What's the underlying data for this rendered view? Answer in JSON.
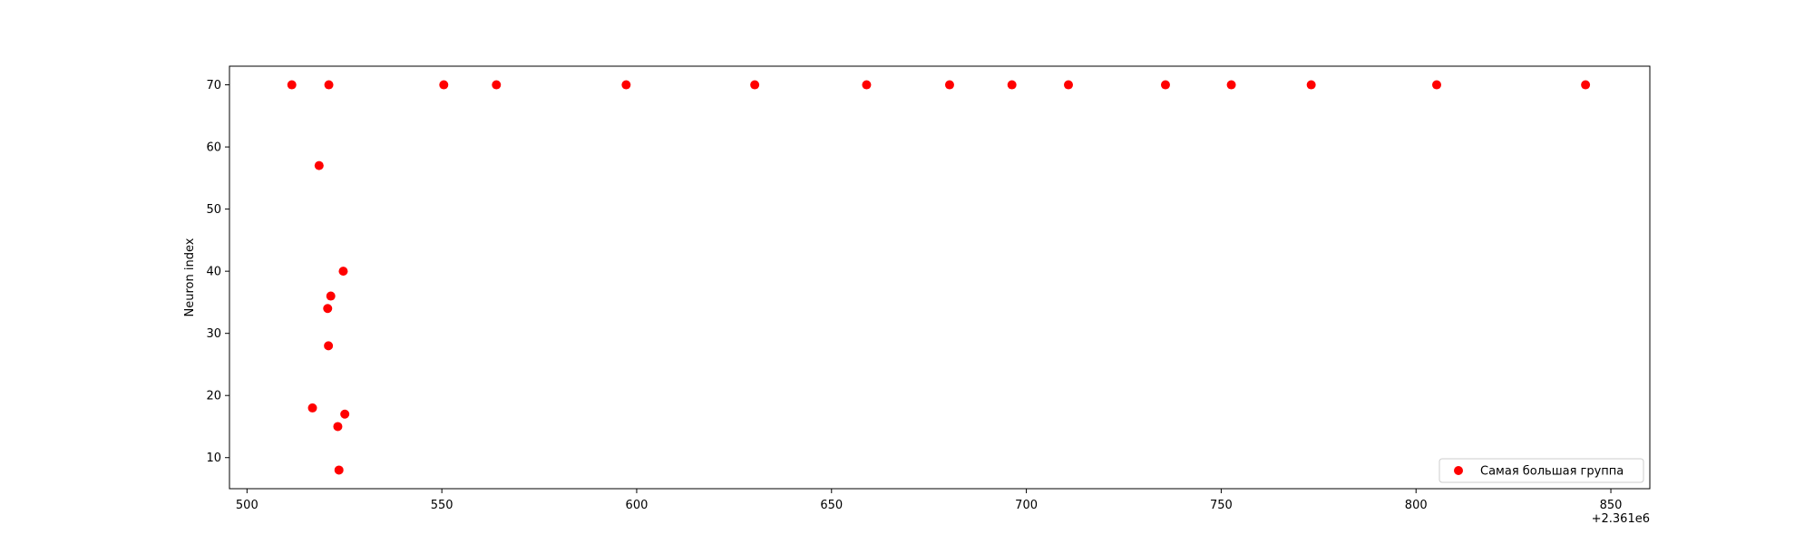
{
  "chart_data": {
    "type": "scatter",
    "title": "",
    "xlabel": "",
    "ylabel": "Neuron index",
    "x_offset_label": "+2.361e6",
    "xlim": [
      495.5,
      860
    ],
    "ylim": [
      5,
      73
    ],
    "xticks": [
      500,
      550,
      600,
      650,
      700,
      750,
      800,
      850
    ],
    "yticks": [
      10,
      20,
      30,
      40,
      50,
      60,
      70
    ],
    "grid": false,
    "legend_position": "bottom-right",
    "marker_color": "#ff0000",
    "series": [
      {
        "name": "Самая большая группа",
        "x": [
          511.5,
          521,
          550.5,
          564,
          597.3,
          630.3,
          659,
          680.3,
          696.3,
          710.8,
          735.7,
          752.6,
          773.1,
          805.3,
          843.5,
          518.5,
          524.7,
          521.5,
          520.7,
          520.9,
          516.8,
          525.1,
          523.3,
          523.6
        ],
        "y": [
          70,
          70,
          70,
          70,
          70,
          70,
          70,
          70,
          70,
          70,
          70,
          70,
          70,
          70,
          70,
          57,
          40,
          36,
          34,
          28,
          18,
          17,
          15,
          8
        ]
      }
    ]
  }
}
